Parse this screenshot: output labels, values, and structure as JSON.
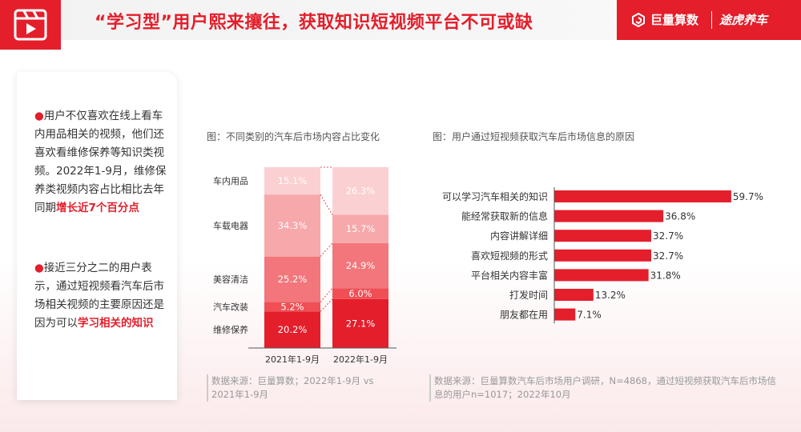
{
  "header": {
    "title": "“学习型”用户熙来攘往，获取知识短视频平台不可或缺",
    "brand_a": "巨量算数",
    "brand_b": "途虎养车"
  },
  "left_panel": {
    "p1_pre": "用户不仅喜欢在线上看车内用品相关的视频，他们还喜欢看维修保养等知识类视频。2022年1-9月，维修保养类视频内容占比相比去年同期",
    "p1_hl": "增长近7个百分点",
    "p2_pre": "接近三分之二的用户表示，通过短视频看汽车后市场相关视频的主要原因还是因为可以",
    "p2_hl": "学习相关的知识"
  },
  "chart_left_caption": "图：不同类别的汽车后市场内容占比变化",
  "chart_right_caption": "图：用户通过短视频获取汽车后市场信息的原因",
  "source_left": "数据来源：巨量算数；2022年1-9月 vs 2021年1-9月",
  "source_right": "数据来源：巨量算数汽车后市场用户调研，N=4868，通过短视频获取汽车后市场信息的用户n=1017；2022年10月",
  "chart_data": [
    {
      "type": "bar",
      "stacked": true,
      "categories": [
        "2021年1-9月",
        "2022年1-9月"
      ],
      "series": [
        {
          "name": "维修保养",
          "values": [
            20.2,
            27.1
          ],
          "color": "#e41e2b"
        },
        {
          "name": "汽车改装",
          "values": [
            5.2,
            6.0
          ],
          "color": "#ef4f55"
        },
        {
          "name": "美容清洁",
          "values": [
            25.2,
            24.9
          ],
          "color": "#f2767b"
        },
        {
          "name": "车载电器",
          "values": [
            34.3,
            15.7
          ],
          "color": "#f7a8ab"
        },
        {
          "name": "车内用品",
          "values": [
            15.1,
            26.3
          ],
          "color": "#fbd0d2"
        }
      ],
      "unit": "%"
    },
    {
      "type": "bar",
      "orientation": "horizontal",
      "categories": [
        "可以学习汽车相关的知识",
        "能经常获取新的信息",
        "内容讲解详细",
        "喜欢短视频的形式",
        "平台相关内容丰富",
        "打发时间",
        "朋友都在用"
      ],
      "values": [
        59.7,
        36.8,
        32.7,
        32.7,
        31.8,
        13.2,
        7.1
      ],
      "unit": "%",
      "color": "#e41e2b"
    }
  ]
}
